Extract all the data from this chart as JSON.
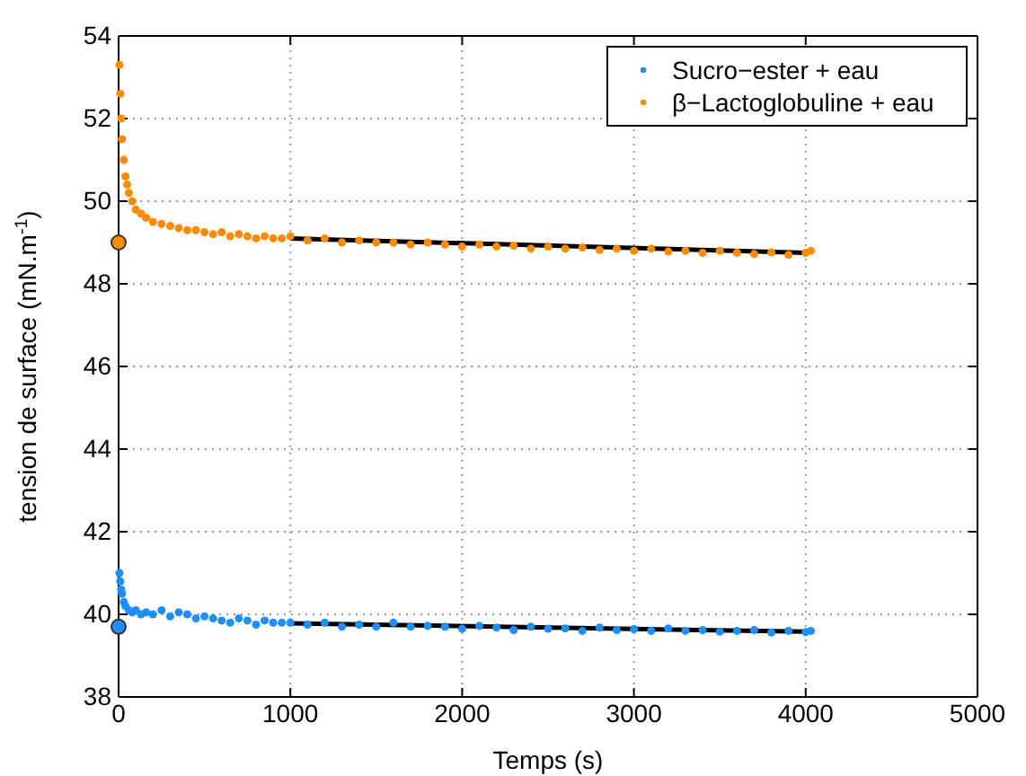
{
  "chart_data": {
    "type": "scatter",
    "xlabel": "Temps (s)",
    "ylabel": "tension de surface (mN.m$^{-1}$)",
    "xlim": [
      0,
      5000
    ],
    "xticks": [
      0,
      1000,
      2000,
      3000,
      4000,
      5000
    ],
    "ylim": [
      38,
      54
    ],
    "yticks": [
      38,
      40,
      42,
      44,
      46,
      48,
      50,
      52,
      54
    ],
    "grid": true,
    "legend": "top right",
    "series": [
      {
        "name": "Sucro−ester + eau",
        "color": "#1e8fff",
        "x": [
          5,
          10,
          15,
          20,
          30,
          40,
          60,
          80,
          100,
          130,
          160,
          200,
          250,
          300,
          350,
          400,
          450,
          500,
          550,
          600,
          650,
          700,
          750,
          800,
          850,
          900,
          950,
          1000,
          1100,
          1200,
          1300,
          1400,
          1500,
          1600,
          1700,
          1800,
          1900,
          2000,
          2100,
          2200,
          2300,
          2400,
          2500,
          2600,
          2700,
          2800,
          2900,
          3000,
          3100,
          3200,
          3300,
          3400,
          3500,
          3600,
          3700,
          3800,
          3900,
          4000,
          4030
        ],
        "values": [
          41.0,
          40.8,
          40.6,
          40.5,
          40.3,
          40.2,
          40.1,
          40.05,
          40.1,
          40.0,
          40.05,
          40.0,
          40.1,
          39.95,
          40.05,
          40.0,
          39.9,
          39.95,
          39.9,
          39.85,
          39.8,
          39.9,
          39.85,
          39.75,
          39.85,
          39.8,
          39.8,
          39.8,
          39.75,
          39.8,
          39.7,
          39.75,
          39.7,
          39.8,
          39.7,
          39.72,
          39.7,
          39.65,
          39.72,
          39.68,
          39.62,
          39.7,
          39.65,
          39.66,
          39.6,
          39.68,
          39.62,
          39.64,
          39.6,
          39.66,
          39.6,
          39.62,
          39.58,
          39.6,
          39.62,
          39.56,
          39.6,
          39.57,
          39.6
        ]
      },
      {
        "name": "β−Lactoglobuline + eau",
        "color": "#ff8c00",
        "x": [
          5,
          10,
          15,
          20,
          30,
          40,
          50,
          60,
          80,
          100,
          130,
          160,
          200,
          250,
          300,
          350,
          400,
          450,
          500,
          550,
          600,
          650,
          700,
          750,
          800,
          850,
          900,
          950,
          1000,
          1100,
          1200,
          1300,
          1400,
          1500,
          1600,
          1700,
          1800,
          1900,
          2000,
          2100,
          2200,
          2300,
          2400,
          2500,
          2600,
          2700,
          2800,
          2900,
          3000,
          3100,
          3200,
          3300,
          3400,
          3500,
          3600,
          3700,
          3800,
          3900,
          4000,
          4030
        ],
        "values": [
          53.3,
          52.6,
          52.0,
          51.5,
          51.0,
          50.6,
          50.4,
          50.2,
          50.0,
          49.8,
          49.7,
          49.6,
          49.5,
          49.45,
          49.4,
          49.35,
          49.3,
          49.3,
          49.25,
          49.2,
          49.25,
          49.15,
          49.2,
          49.15,
          49.1,
          49.15,
          49.1,
          49.1,
          49.15,
          49.05,
          49.1,
          49.0,
          49.05,
          49.0,
          49.0,
          48.95,
          49.0,
          48.95,
          48.9,
          48.95,
          48.9,
          48.92,
          48.85,
          48.9,
          48.85,
          48.88,
          48.82,
          48.85,
          48.8,
          48.85,
          48.78,
          48.8,
          48.75,
          48.8,
          48.75,
          48.72,
          48.76,
          48.7,
          48.75,
          48.8
        ]
      },
      {
        "type": "line",
        "color": "#000000",
        "x": [
          1000,
          4000
        ],
        "values": [
          39.78,
          39.58
        ]
      },
      {
        "type": "line",
        "color": "#000000",
        "x": [
          1000,
          4000
        ],
        "values": [
          49.1,
          48.75
        ]
      },
      {
        "marker": "circle",
        "color": "#1e8fff",
        "x": [
          0
        ],
        "values": [
          39.7
        ]
      },
      {
        "marker": "circle",
        "color": "#ff8c00",
        "x": [
          0
        ],
        "values": [
          49.0
        ]
      }
    ]
  }
}
